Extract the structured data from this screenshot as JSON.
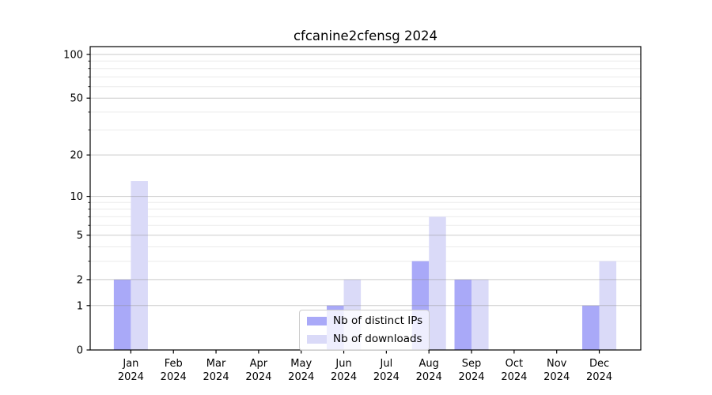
{
  "chart_data": {
    "type": "bar",
    "title": "cfcanine2cfensg 2024",
    "categories": [
      "Jan",
      "Feb",
      "Mar",
      "Apr",
      "May",
      "Jun",
      "Jul",
      "Aug",
      "Sep",
      "Oct",
      "Nov",
      "Dec"
    ],
    "x_tick_second_line": "2024",
    "series": [
      {
        "name": "Nb of distinct IPs",
        "color": "#a9a9f8",
        "values": [
          2,
          0,
          0,
          0,
          0,
          1,
          0,
          3,
          2,
          0,
          0,
          1
        ]
      },
      {
        "name": "Nb of downloads",
        "color": "#dadaf8",
        "values": [
          13,
          0,
          0,
          0,
          0,
          2,
          0,
          7,
          2,
          0,
          0,
          3
        ]
      }
    ],
    "ylabel": "",
    "xlabel": "",
    "y_scale": "log1p",
    "ylim": [
      0,
      113
    ],
    "y_major_ticks": [
      0,
      1,
      2,
      5,
      10,
      20,
      50,
      100
    ],
    "y_minor_gridlines": [
      3,
      4,
      6,
      7,
      8,
      9,
      30,
      40,
      60,
      70,
      80,
      90
    ],
    "grid": "horizontal",
    "legend_position": "lower center"
  },
  "colors": {
    "background": "#ffffff",
    "spine": "#000000",
    "major_grid": "#8a8a8a",
    "minor_grid": "#ebebeb",
    "text": "#000000",
    "legend_border": "#cccccc"
  }
}
